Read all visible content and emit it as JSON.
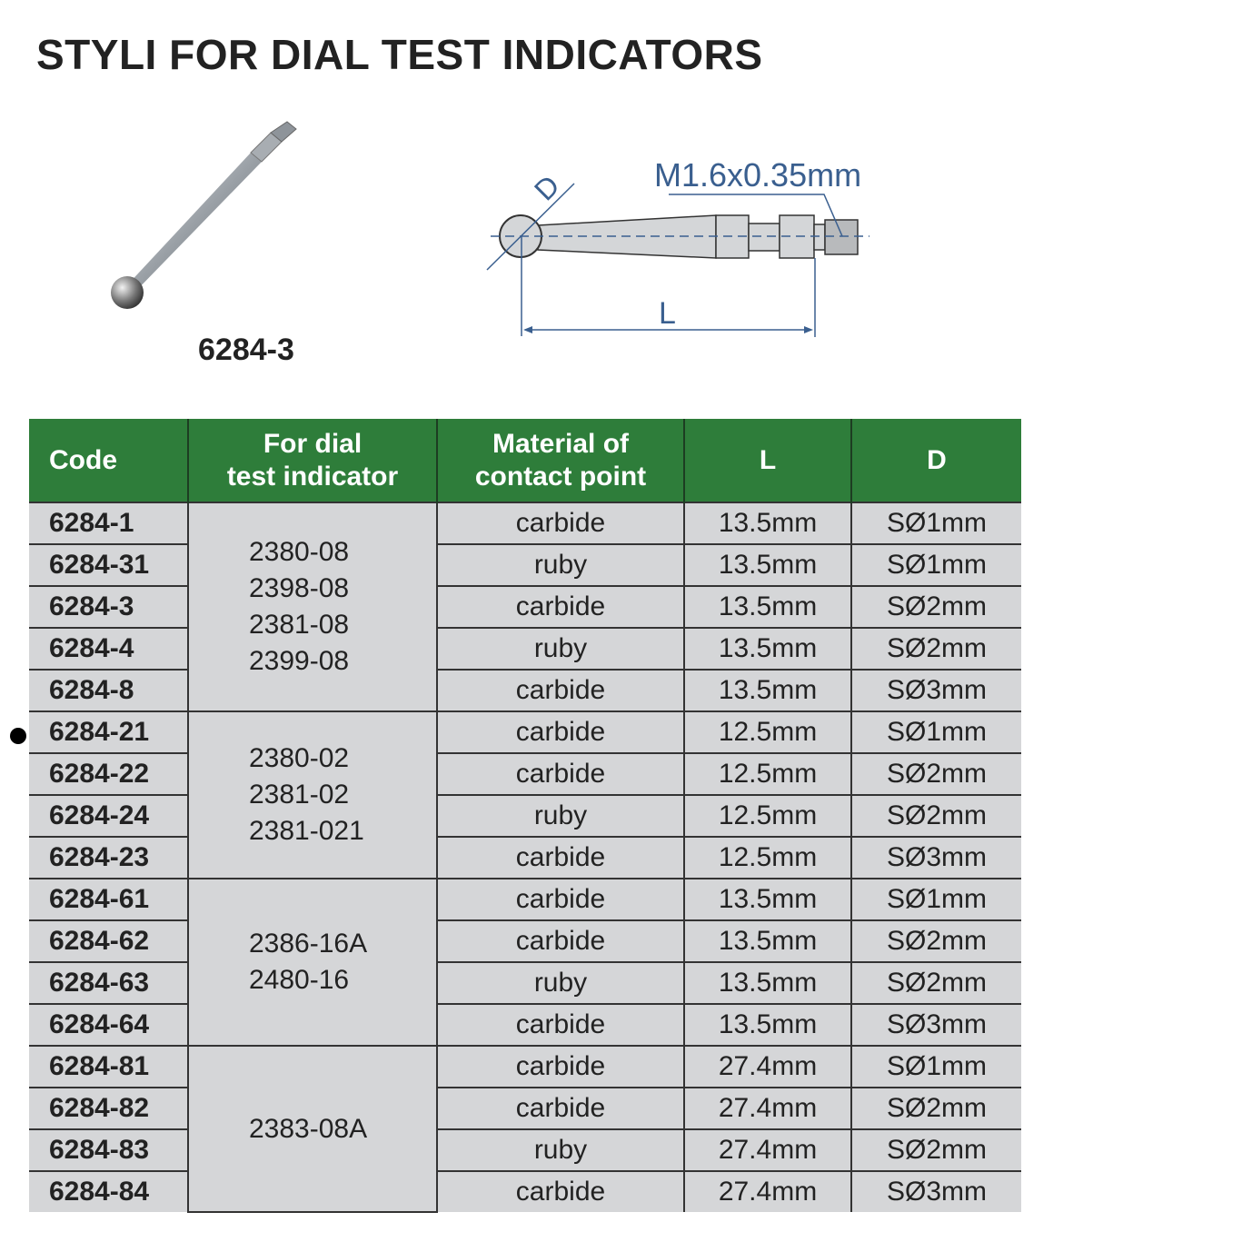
{
  "title": "STYLI FOR DIAL TEST INDICATORS",
  "photo_caption": "6284-3",
  "drawing": {
    "thread_label": "M1.6x0.35mm",
    "diameter_label": "D",
    "length_label": "L"
  },
  "colors": {
    "header_bg": "#2e7d3a",
    "cell_bg": "#d5d6d8",
    "drawing_line": "#3a5f8f"
  },
  "table": {
    "headers": [
      "Code",
      "For dial\ntest indicator",
      "Material of\ncontact point",
      "L",
      "D"
    ],
    "groups": [
      {
        "indicators": [
          "2380-08",
          "2398-08",
          "2381-08",
          "2399-08"
        ],
        "rows": [
          [
            "6284-1",
            "carbide",
            "13.5mm",
            "SØ1mm"
          ],
          [
            "6284-31",
            "ruby",
            "13.5mm",
            "SØ1mm"
          ],
          [
            "6284-3",
            "carbide",
            "13.5mm",
            "SØ2mm"
          ],
          [
            "6284-4",
            "ruby",
            "13.5mm",
            "SØ2mm"
          ],
          [
            "6284-8",
            "carbide",
            "13.5mm",
            "SØ3mm"
          ]
        ]
      },
      {
        "indicators": [
          "2380-02",
          "2381-02",
          "2381-021"
        ],
        "rows": [
          [
            "6284-21",
            "carbide",
            "12.5mm",
            "SØ1mm"
          ],
          [
            "6284-22",
            "carbide",
            "12.5mm",
            "SØ2mm"
          ],
          [
            "6284-24",
            "ruby",
            "12.5mm",
            "SØ2mm"
          ],
          [
            "6284-23",
            "carbide",
            "12.5mm",
            "SØ3mm"
          ]
        ]
      },
      {
        "indicators": [
          "2386-16A",
          "2480-16"
        ],
        "rows": [
          [
            "6284-61",
            "carbide",
            "13.5mm",
            "SØ1mm"
          ],
          [
            "6284-62",
            "carbide",
            "13.5mm",
            "SØ2mm"
          ],
          [
            "6284-63",
            "ruby",
            "13.5mm",
            "SØ2mm"
          ],
          [
            "6284-64",
            "carbide",
            "13.5mm",
            "SØ3mm"
          ]
        ]
      },
      {
        "indicators": [
          "2383-08A"
        ],
        "rows": [
          [
            "6284-81",
            "carbide",
            "27.4mm",
            "SØ1mm"
          ],
          [
            "6284-82",
            "carbide",
            "27.4mm",
            "SØ2mm"
          ],
          [
            "6284-83",
            "ruby",
            "27.4mm",
            "SØ2mm"
          ],
          [
            "6284-84",
            "carbide",
            "27.4mm",
            "SØ3mm"
          ]
        ]
      }
    ]
  }
}
